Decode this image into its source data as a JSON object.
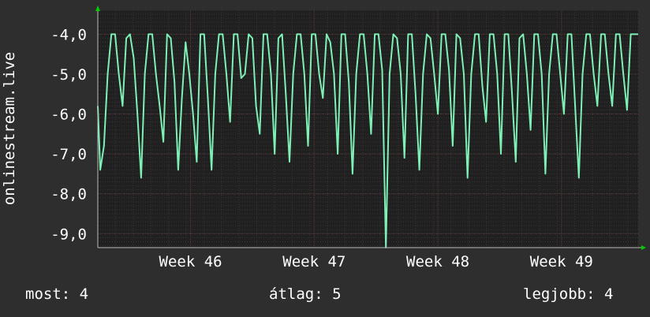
{
  "chart_data": {
    "type": "line",
    "ylabel": "onlinestream.live",
    "ylim": [
      -9.35,
      -3.4
    ],
    "yticks": [
      -4,
      -5,
      -6,
      -7,
      -8,
      -9
    ],
    "ytick_labels": [
      "-4,0",
      "-5,0",
      "-6,0",
      "-7,0",
      "-8,0",
      "-9,0"
    ],
    "xlim": [
      45.25,
      49.62
    ],
    "xticks": [
      46,
      47,
      48,
      49
    ],
    "xtick_labels": [
      "Week 46",
      "Week 47",
      "Week 48",
      "Week 49"
    ],
    "grid": true,
    "colors": {
      "background": "#2e2e2e",
      "plot_background": "#202020",
      "line": "#7ef0b6",
      "grid_major": "#5a3a3a",
      "grid_minor": "#3a3434",
      "arrow": "#00cc00"
    },
    "series": [
      {
        "x": [
          45.25,
          45.27,
          45.3,
          45.33,
          45.36,
          45.39,
          45.42,
          45.45,
          45.48,
          45.51,
          45.54,
          45.57,
          45.6,
          45.63,
          45.66,
          45.69,
          45.72,
          45.75,
          45.78,
          45.81,
          45.84,
          45.87,
          45.9,
          45.93,
          45.96,
          45.99,
          46.02,
          46.05,
          46.08,
          46.11,
          46.14,
          46.17,
          46.2,
          46.23,
          46.26,
          46.29,
          46.32,
          46.35,
          46.38,
          46.41,
          46.44,
          46.47,
          46.5,
          46.53,
          46.56,
          46.59,
          46.62,
          46.65,
          46.68,
          46.71,
          46.74,
          46.77,
          46.8,
          46.83,
          46.86,
          46.89,
          46.92,
          46.95,
          46.98,
          47.01,
          47.04,
          47.07,
          47.1,
          47.13,
          47.16,
          47.19,
          47.22,
          47.25,
          47.28,
          47.31,
          47.34,
          47.37,
          47.4,
          47.43,
          47.46,
          47.49,
          47.52,
          47.55,
          47.58,
          47.61,
          47.64,
          47.67,
          47.7,
          47.73,
          47.76,
          47.79,
          47.82,
          47.85,
          47.88,
          47.91,
          47.94,
          47.97,
          48.0,
          48.03,
          48.06,
          48.09,
          48.12,
          48.15,
          48.18,
          48.21,
          48.24,
          48.27,
          48.3,
          48.33,
          48.36,
          48.39,
          48.42,
          48.45,
          48.48,
          48.51,
          48.54,
          48.57,
          48.6,
          48.63,
          48.66,
          48.69,
          48.72,
          48.75,
          48.78,
          48.81,
          48.84,
          48.87,
          48.9,
          48.93,
          48.96,
          48.99,
          49.02,
          49.05,
          49.08,
          49.11,
          49.14,
          49.17,
          49.2,
          49.23,
          49.26,
          49.29,
          49.32,
          49.35,
          49.38,
          49.41,
          49.44,
          49.47,
          49.5,
          49.53,
          49.56,
          49.59,
          49.62
        ],
        "y": [
          -5.8,
          -7.4,
          -6.8,
          -5.0,
          -4.0,
          -4.0,
          -5.0,
          -5.8,
          -4.1,
          -4.0,
          -4.6,
          -6.0,
          -7.6,
          -5.0,
          -4.0,
          -4.0,
          -5.0,
          -5.8,
          -6.7,
          -4.0,
          -4.1,
          -5.2,
          -7.4,
          -5.6,
          -4.2,
          -5.0,
          -6.0,
          -7.2,
          -4.0,
          -4.0,
          -5.6,
          -7.4,
          -5.0,
          -4.0,
          -4.0,
          -5.0,
          -6.2,
          -4.0,
          -4.0,
          -5.1,
          -5.0,
          -4.0,
          -4.1,
          -5.8,
          -6.5,
          -4.0,
          -4.0,
          -5.0,
          -7.0,
          -4.1,
          -4.0,
          -5.5,
          -7.2,
          -5.0,
          -4.0,
          -4.0,
          -5.0,
          -6.8,
          -4.0,
          -4.0,
          -5.0,
          -5.6,
          -4.0,
          -4.2,
          -5.0,
          -7.0,
          -4.0,
          -4.0,
          -5.2,
          -7.5,
          -5.0,
          -4.0,
          -4.0,
          -5.0,
          -6.5,
          -4.0,
          -4.0,
          -4.9,
          -9.35,
          -5.0,
          -4.0,
          -4.1,
          -5.0,
          -7.1,
          -4.0,
          -4.0,
          -5.5,
          -7.4,
          -5.0,
          -4.0,
          -4.1,
          -5.0,
          -6.0,
          -4.0,
          -4.0,
          -4.9,
          -6.8,
          -4.0,
          -4.1,
          -5.0,
          -7.6,
          -5.0,
          -4.0,
          -4.0,
          -5.3,
          -6.2,
          -4.0,
          -4.0,
          -5.0,
          -7.0,
          -4.0,
          -4.0,
          -5.5,
          -7.2,
          -4.1,
          -4.0,
          -5.0,
          -6.4,
          -4.0,
          -4.0,
          -5.0,
          -7.5,
          -5.0,
          -4.0,
          -4.0,
          -5.0,
          -6.0,
          -4.0,
          -4.0,
          -5.8,
          -7.6,
          -5.0,
          -4.0,
          -4.0,
          -5.0,
          -5.8,
          -4.0,
          -4.0,
          -5.0,
          -5.8,
          -4.0,
          -4.0,
          -5.0,
          -5.9,
          -4.0,
          -4.0,
          -4.0
        ]
      }
    ]
  },
  "footer": {
    "current": "most: 4",
    "average": "átlag: 5",
    "best": "legjobb: 4"
  }
}
